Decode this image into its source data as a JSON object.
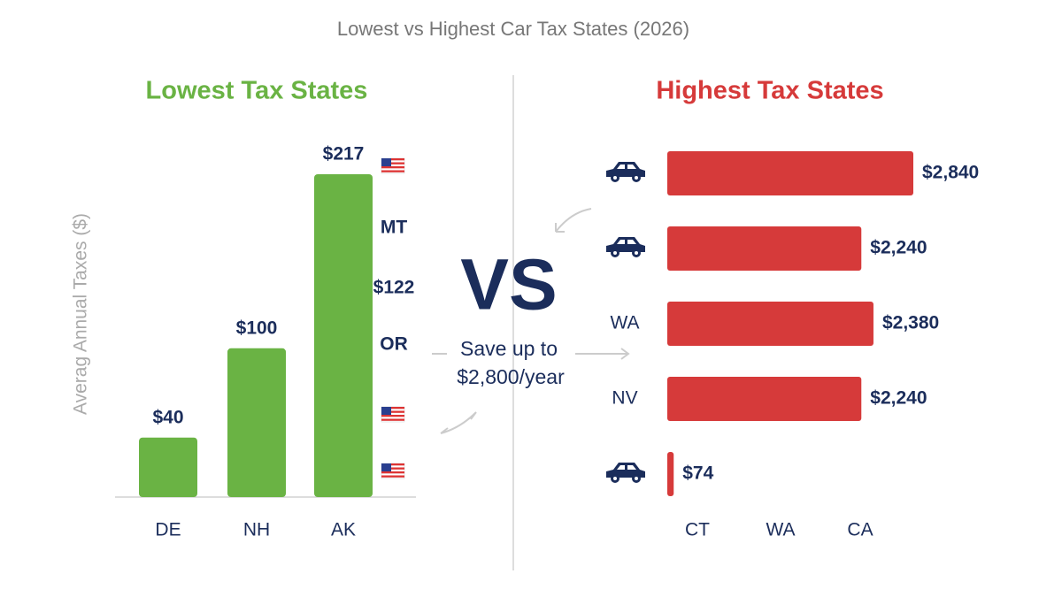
{
  "title": "Lowest vs Highest Car Tax States (2026)",
  "center": {
    "vs": "VS",
    "savings_line1": "Save up to",
    "savings_line2": "$2,800/year"
  },
  "chart_data": [
    {
      "type": "bar",
      "title": "Lowest Tax States",
      "ylabel": "Averag Annual Taxes ($)",
      "categories": [
        "DE",
        "NH",
        "AK"
      ],
      "values": [
        40,
        100,
        217
      ],
      "value_labels": [
        "$40",
        "$100",
        "$217"
      ],
      "color": "#6ab344",
      "annotations": [
        "MT",
        "$122",
        "OR"
      ]
    },
    {
      "type": "barh",
      "title": "Highest Tax States",
      "categories": [
        null,
        null,
        "WA",
        "NV",
        null
      ],
      "values": [
        2840,
        2240,
        2380,
        2240,
        74
      ],
      "value_labels": [
        "$2,840",
        "$2,240",
        "$2,380",
        "$2,240",
        "$74"
      ],
      "color": "#d63a3a",
      "x_labels": [
        "CT",
        "WA",
        "CA"
      ]
    }
  ]
}
